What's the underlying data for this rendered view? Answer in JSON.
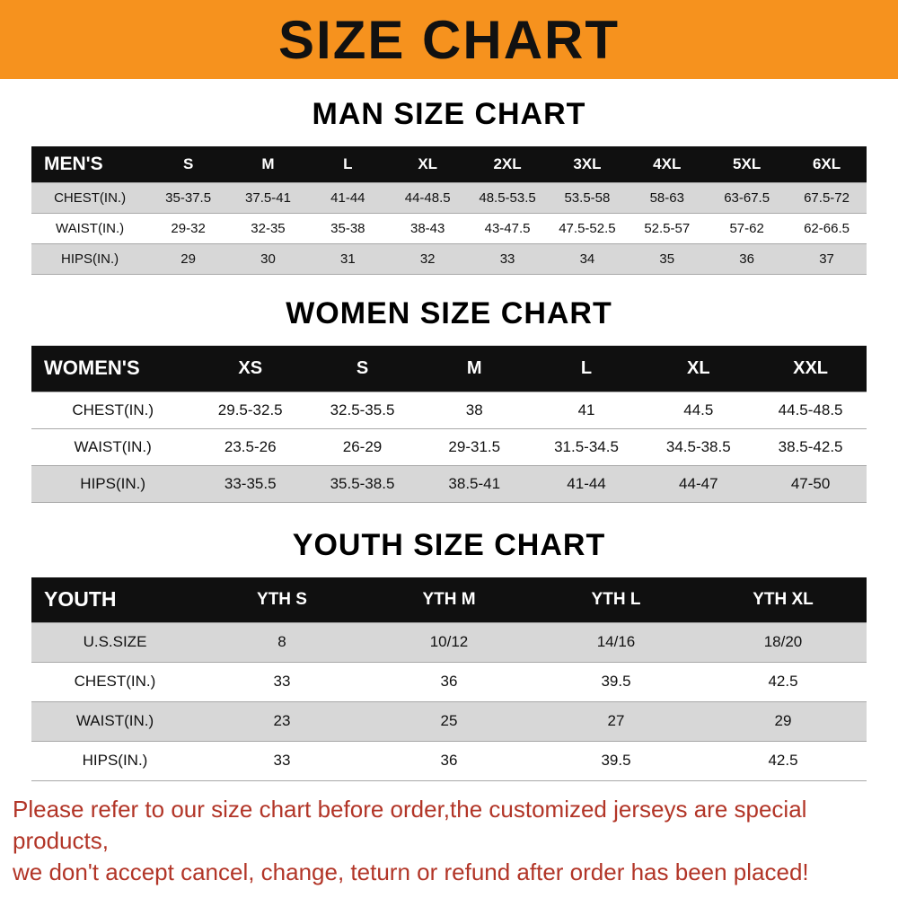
{
  "banner": {
    "title": "SIZE CHART"
  },
  "colors": {
    "banner-bg": "#f6921e",
    "table-head-bg": "#101010",
    "row-shade": "#d7d7d7",
    "footer-red": "#b23527"
  },
  "sections": [
    {
      "title": "MAN SIZE CHART",
      "header": [
        "MEN'S",
        "S",
        "M",
        "L",
        "XL",
        "2XL",
        "3XL",
        "4XL",
        "5XL",
        "6XL"
      ],
      "rows": [
        {
          "label": "CHEST(IN.)",
          "values": [
            "35-37.5",
            "37.5-41",
            "41-44",
            "44-48.5",
            "48.5-53.5",
            "53.5-58",
            "58-63",
            "63-67.5",
            "67.5-72"
          ]
        },
        {
          "label": "WAIST(IN.)",
          "values": [
            "29-32",
            "32-35",
            "35-38",
            "38-43",
            "43-47.5",
            "47.5-52.5",
            "52.5-57",
            "57-62",
            "62-66.5"
          ]
        },
        {
          "label": "HIPS(IN.)",
          "values": [
            "29",
            "30",
            "31",
            "32",
            "33",
            "34",
            "35",
            "36",
            "37"
          ]
        }
      ]
    },
    {
      "title": "WOMEN SIZE CHART",
      "header": [
        "WOMEN'S",
        "XS",
        "S",
        "M",
        "L",
        "XL",
        "XXL"
      ],
      "rows": [
        {
          "label": "CHEST(IN.)",
          "values": [
            "29.5-32.5",
            "32.5-35.5",
            "38",
            "41",
            "44.5",
            "44.5-48.5"
          ]
        },
        {
          "label": "WAIST(IN.)",
          "values": [
            "23.5-26",
            "26-29",
            "29-31.5",
            "31.5-34.5",
            "34.5-38.5",
            "38.5-42.5"
          ]
        },
        {
          "label": "HIPS(IN.)",
          "values": [
            "33-35.5",
            "35.5-38.5",
            "38.5-41",
            "41-44",
            "44-47",
            "47-50"
          ]
        }
      ]
    },
    {
      "title": "YOUTH SIZE CHART",
      "header": [
        "YOUTH",
        "YTH S",
        "YTH M",
        "YTH L",
        "YTH XL"
      ],
      "rows": [
        {
          "label": "U.S.SIZE",
          "values": [
            "8",
            "10/12",
            "14/16",
            "18/20"
          ]
        },
        {
          "label": "CHEST(IN.)",
          "values": [
            "33",
            "36",
            "39.5",
            "42.5"
          ]
        },
        {
          "label": "WAIST(IN.)",
          "values": [
            "23",
            "25",
            "27",
            "29"
          ]
        },
        {
          "label": "HIPS(IN.)",
          "values": [
            "33",
            "36",
            "39.5",
            "42.5"
          ]
        }
      ]
    }
  ],
  "footer": {
    "lines": [
      "Please refer to our size chart before order,the customized jerseys are special products,",
      "we don't accept cancel, change, teturn or refund after order has been placed!"
    ]
  }
}
